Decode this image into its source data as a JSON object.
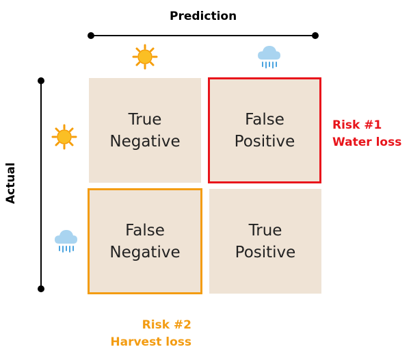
{
  "axis": {
    "prediction_label": "Prediction",
    "actual_label": "Actual"
  },
  "cells": {
    "top_left": {
      "line1": "True",
      "line2": "Negative"
    },
    "top_right": {
      "line1": "False",
      "line2": "Positive"
    },
    "bottom_left": {
      "line1": "False",
      "line2": "Negative"
    },
    "bottom_right": {
      "line1": "True",
      "line2": "Positive"
    }
  },
  "risks": {
    "risk1": {
      "line1": "Risk #1",
      "line2": "Water loss",
      "color": "#e8141b"
    },
    "risk2": {
      "line1": "Risk #2",
      "line2": "Harvest loss",
      "color": "#f39c12"
    }
  },
  "icons": {
    "prediction_col1": "sun-icon",
    "prediction_col2": "rain-cloud-icon",
    "actual_row1": "sun-icon",
    "actual_row2": "rain-cloud-icon"
  },
  "colors": {
    "cell_fill": "#efe3d5",
    "sun": "#fbbf24",
    "cloud": "#a9d4f0",
    "rain": "#4aa3df"
  }
}
